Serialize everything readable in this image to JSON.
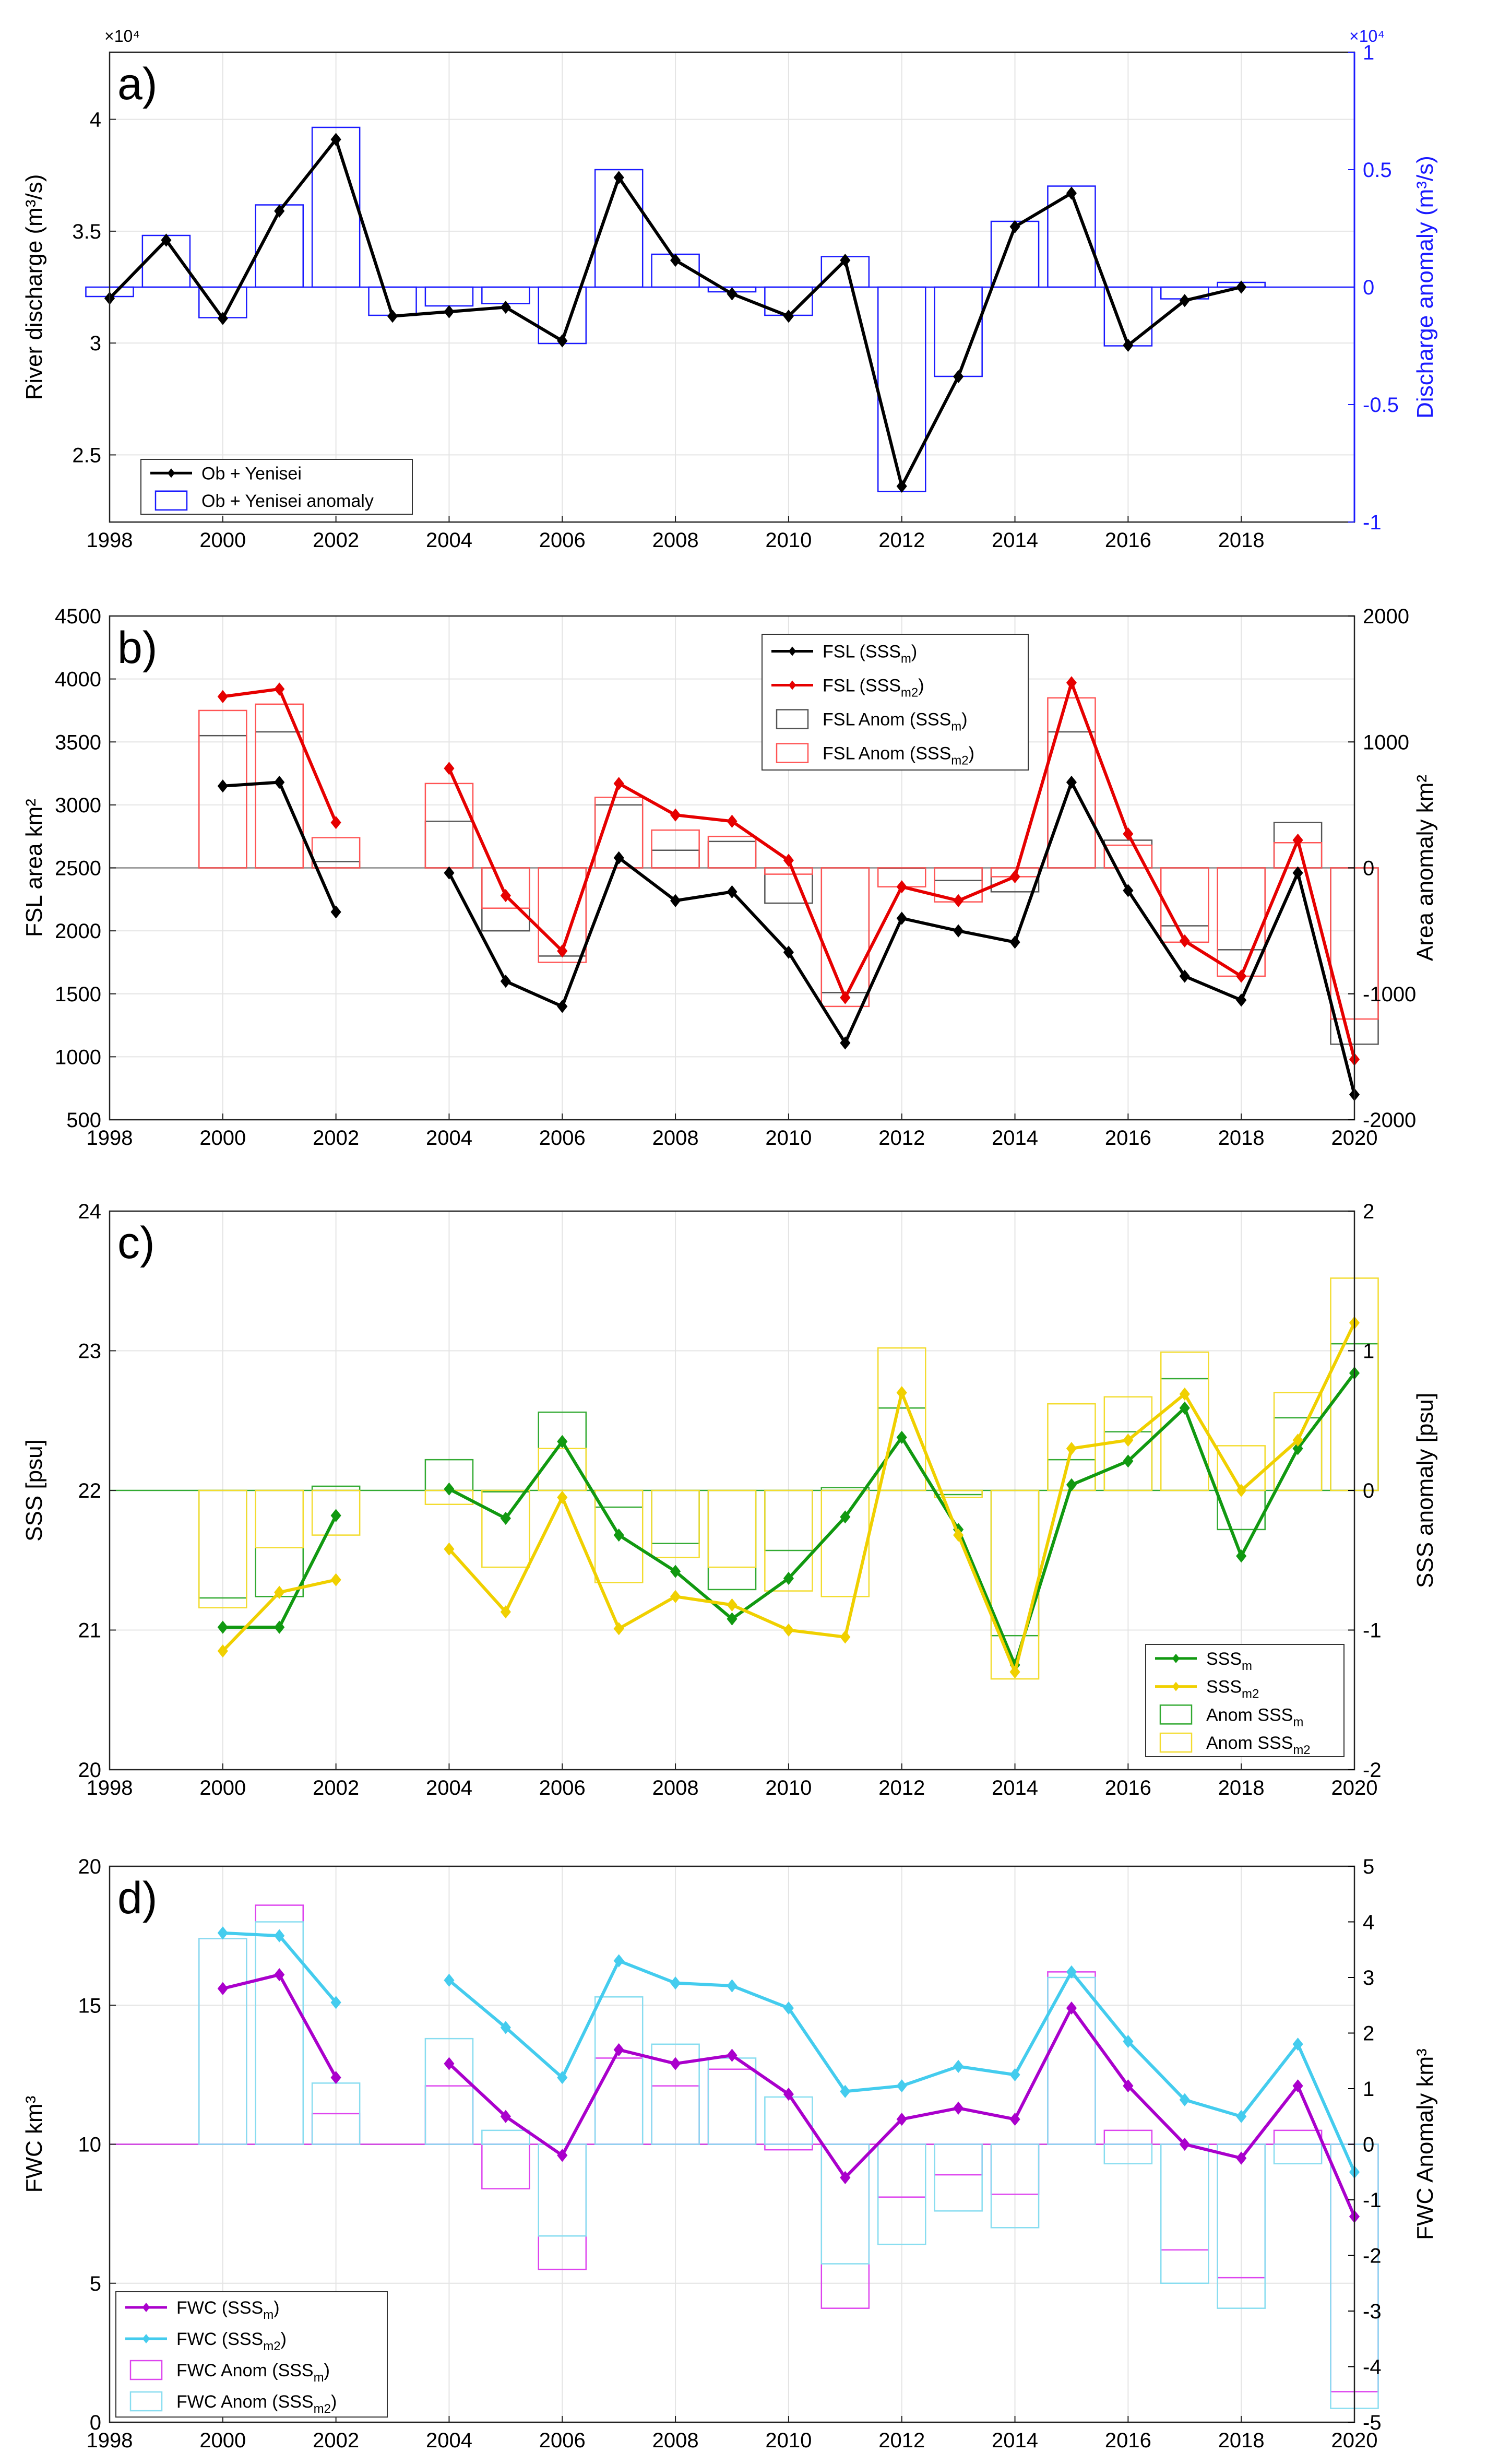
{
  "chart_data": [
    {
      "type": "bar+line",
      "panel_label": "a)",
      "ylabel": "River discharge (m³/s)",
      "ylabel_right": "Discharge anomaly (m³/s)",
      "ylabel_right_color": "#1a1aff",
      "y_multiplier_left": "×10⁴",
      "y_multiplier_right": "×10⁴",
      "xlim": [
        1998,
        2020
      ],
      "xticks": [
        "1998",
        "2000",
        "2002",
        "2004",
        "2006",
        "2008",
        "2010",
        "2012",
        "2014",
        "2016",
        "2018"
      ],
      "ylim": [
        2.2,
        4.3
      ],
      "yticks": [
        "2.5",
        "3",
        "3.5",
        "4"
      ],
      "ylim_right": [
        -1,
        1
      ],
      "yticks_right": [
        "-1",
        "-0.5",
        "0",
        "0.5",
        "1"
      ],
      "legend": {
        "position": "bottom-left",
        "entries": [
          "Ob + Yenisei",
          "Ob + Yenisei anomaly"
        ]
      },
      "series": [
        {
          "name": "Ob + Yenisei",
          "kind": "line",
          "axis": "left",
          "color": "#000000",
          "x": [
            1998,
            1999,
            2000,
            2001,
            2002,
            2003,
            2004,
            2005,
            2006,
            2007,
            2008,
            2009,
            2010,
            2011,
            2012,
            2013,
            2014,
            2015,
            2016,
            2017,
            2018
          ],
          "values": [
            3.2,
            3.46,
            3.11,
            3.59,
            3.91,
            3.12,
            3.14,
            3.16,
            3.01,
            3.74,
            3.37,
            3.22,
            3.12,
            3.37,
            2.36,
            2.85,
            3.52,
            3.67,
            2.99,
            3.19,
            3.25
          ]
        },
        {
          "name": "Ob + Yenisei anomaly",
          "kind": "bar",
          "axis": "right",
          "color": "#1a1aff",
          "x": [
            1998,
            1999,
            2000,
            2001,
            2002,
            2003,
            2004,
            2005,
            2006,
            2007,
            2008,
            2009,
            2010,
            2011,
            2012,
            2013,
            2014,
            2015,
            2016,
            2017,
            2018
          ],
          "values": [
            -0.04,
            0.22,
            -0.13,
            0.35,
            0.68,
            -0.12,
            -0.08,
            -0.07,
            -0.24,
            0.5,
            0.14,
            -0.02,
            -0.12,
            0.13,
            -0.87,
            -0.38,
            0.28,
            0.43,
            -0.25,
            -0.05,
            0.02
          ]
        }
      ]
    },
    {
      "type": "bar+line",
      "panel_label": "b)",
      "ylabel": "FSL area km²",
      "ylabel_right": "Area anomaly km²",
      "xlim": [
        1998,
        2020
      ],
      "xticks": [
        "1998",
        "2000",
        "2002",
        "2004",
        "2006",
        "2008",
        "2010",
        "2012",
        "2014",
        "2016",
        "2018",
        "2020"
      ],
      "ylim": [
        500,
        4500
      ],
      "yticks": [
        "500",
        "1000",
        "1500",
        "2000",
        "2500",
        "3000",
        "3500",
        "4000",
        "4500"
      ],
      "ylim_right": [
        -2000,
        2000
      ],
      "yticks_right": [
        "-2000",
        "-1000",
        "0",
        "1000",
        "2000"
      ],
      "legend": {
        "position": "top-center"
      },
      "series": [
        {
          "name": "FSL (SSS_m)",
          "kind": "line",
          "axis": "left",
          "color": "#000000",
          "x": [
            2000,
            2001,
            2002,
            null,
            2004,
            2005,
            2006,
            2007,
            2008,
            2009,
            2010,
            2011,
            2012,
            2013,
            2014,
            2015,
            2016,
            2017,
            2018,
            2019,
            2020
          ],
          "values": [
            3150,
            3180,
            2150,
            null,
            2460,
            1600,
            1400,
            2580,
            2240,
            2310,
            1830,
            1110,
            2100,
            2000,
            1910,
            3180,
            2320,
            1640,
            1450,
            2460,
            700
          ]
        },
        {
          "name": "FSL (SSS_m2)",
          "kind": "line",
          "axis": "left",
          "color": "#e60000",
          "x": [
            2000,
            2001,
            2002,
            null,
            2004,
            2005,
            2006,
            2007,
            2008,
            2009,
            2010,
            2011,
            2012,
            2013,
            2014,
            2015,
            2016,
            2017,
            2018,
            2019,
            2020
          ],
          "values": [
            3860,
            3920,
            2860,
            null,
            3290,
            2280,
            1840,
            3170,
            2920,
            2870,
            2560,
            1470,
            2350,
            2240,
            2430,
            3970,
            2770,
            1920,
            1640,
            2720,
            980
          ]
        },
        {
          "name": "FSL Anom (SSS_m)",
          "kind": "bar",
          "axis": "right",
          "color": "#555555",
          "x": [
            2000,
            2001,
            2002,
            2004,
            2005,
            2006,
            2007,
            2008,
            2009,
            2010,
            2011,
            2012,
            2013,
            2014,
            2015,
            2016,
            2017,
            2018,
            2019,
            2020
          ],
          "values": [
            1050,
            1080,
            50,
            370,
            -500,
            -700,
            500,
            140,
            210,
            -280,
            -990,
            0,
            -100,
            -190,
            1080,
            220,
            -460,
            -650,
            360,
            -1400
          ]
        },
        {
          "name": "FSL Anom (SSS_m2)",
          "kind": "bar",
          "axis": "right",
          "color": "#ff5555",
          "x": [
            2000,
            2001,
            2002,
            2004,
            2005,
            2006,
            2007,
            2008,
            2009,
            2010,
            2011,
            2012,
            2013,
            2014,
            2015,
            2016,
            2017,
            2018,
            2019,
            2020
          ],
          "values": [
            1250,
            1300,
            240,
            670,
            -320,
            -750,
            560,
            300,
            250,
            -50,
            -1100,
            -150,
            -270,
            -70,
            1350,
            180,
            -590,
            -860,
            200,
            -1200
          ]
        }
      ]
    },
    {
      "type": "bar+line",
      "panel_label": "c)",
      "ylabel": "SSS [psu]",
      "ylabel_right": "SSS anomaly [psu]",
      "xlim": [
        1998,
        2020
      ],
      "xticks": [
        "1998",
        "2000",
        "2002",
        "2004",
        "2006",
        "2008",
        "2010",
        "2012",
        "2014",
        "2016",
        "2018",
        "2020"
      ],
      "ylim": [
        20,
        24
      ],
      "yticks": [
        "20",
        "21",
        "22",
        "23",
        "24"
      ],
      "ylim_right": [
        -2,
        2
      ],
      "yticks_right": [
        "-2",
        "-1",
        "0",
        "1",
        "2"
      ],
      "legend": {
        "position": "bottom-right"
      },
      "series": [
        {
          "name": "SSS_m",
          "kind": "line",
          "axis": "left",
          "color": "#119911",
          "x": [
            2000,
            2001,
            2002,
            null,
            2004,
            2005,
            2006,
            2007,
            2008,
            2009,
            2010,
            2011,
            2012,
            2013,
            2014,
            2015,
            2016,
            2017,
            2018,
            2019,
            2020
          ],
          "values": [
            21.02,
            21.02,
            21.82,
            null,
            22.01,
            21.8,
            22.35,
            21.68,
            21.42,
            21.08,
            21.37,
            21.81,
            22.38,
            21.72,
            20.75,
            22.04,
            22.21,
            22.59,
            21.53,
            22.3,
            22.84
          ]
        },
        {
          "name": "SSS_m2",
          "kind": "line",
          "axis": "left",
          "color": "#f0d000",
          "x": [
            2000,
            2001,
            2002,
            null,
            2004,
            2005,
            2006,
            2007,
            2008,
            2009,
            2010,
            2011,
            2012,
            2013,
            2014,
            2015,
            2016,
            2017,
            2018,
            2019,
            2020
          ],
          "values": [
            20.85,
            21.27,
            21.36,
            null,
            21.58,
            21.13,
            21.95,
            21.01,
            21.24,
            21.18,
            21.0,
            20.95,
            22.7,
            21.68,
            20.7,
            22.3,
            22.36,
            22.69,
            22.0,
            22.36,
            23.2
          ]
        },
        {
          "name": "Anom SSS_m",
          "kind": "bar",
          "axis": "right",
          "color": "#33aa33",
          "x": [
            2000,
            2001,
            2002,
            2004,
            2005,
            2006,
            2007,
            2008,
            2009,
            2010,
            2011,
            2012,
            2013,
            2014,
            2015,
            2016,
            2017,
            2018,
            2019,
            2020
          ],
          "values": [
            -0.77,
            -0.76,
            0.03,
            0.22,
            -0.01,
            0.56,
            -0.12,
            -0.38,
            -0.71,
            -0.43,
            0.02,
            0.59,
            -0.03,
            -1.04,
            0.22,
            0.42,
            0.8,
            -0.28,
            0.52,
            1.05
          ]
        },
        {
          "name": "Anom SSS_m2",
          "kind": "bar",
          "axis": "right",
          "color": "#f3dc30",
          "x": [
            2000,
            2001,
            2002,
            2004,
            2005,
            2006,
            2007,
            2008,
            2009,
            2010,
            2011,
            2012,
            2013,
            2014,
            2015,
            2016,
            2017,
            2018,
            2019,
            2020
          ],
          "values": [
            -0.84,
            -0.41,
            -0.32,
            -0.1,
            -0.55,
            0.3,
            -0.66,
            -0.48,
            -0.55,
            -0.72,
            -0.76,
            1.02,
            -0.05,
            -1.35,
            0.62,
            0.67,
            0.99,
            0.32,
            0.7,
            1.52
          ]
        }
      ]
    },
    {
      "type": "bar+line",
      "panel_label": "d)",
      "ylabel": "FWC km³",
      "ylabel_right": "FWC Anomaly km³",
      "xlim": [
        1998,
        2020
      ],
      "xticks": [
        "1998",
        "2000",
        "2002",
        "2004",
        "2006",
        "2008",
        "2010",
        "2012",
        "2014",
        "2016",
        "2018",
        "2020"
      ],
      "ylim": [
        0,
        20
      ],
      "yticks": [
        "0",
        "5",
        "10",
        "15",
        "20"
      ],
      "ylim_right": [
        -5,
        5
      ],
      "yticks_right": [
        "-5",
        "-4",
        "-3",
        "-2",
        "-1",
        "0",
        "1",
        "2",
        "3",
        "4",
        "5"
      ],
      "legend": {
        "position": "bottom-left"
      },
      "series": [
        {
          "name": "FWC (SSS_m)",
          "kind": "line",
          "axis": "left",
          "color": "#aa00cc",
          "x": [
            2000,
            2001,
            2002,
            null,
            2004,
            2005,
            2006,
            2007,
            2008,
            2009,
            2010,
            2011,
            2012,
            2013,
            2014,
            2015,
            2016,
            2017,
            2018,
            2019,
            2020
          ],
          "values": [
            15.6,
            16.1,
            12.4,
            null,
            12.9,
            11.0,
            9.6,
            13.4,
            12.9,
            13.2,
            11.8,
            8.8,
            10.9,
            11.3,
            10.9,
            14.9,
            12.1,
            10.0,
            9.5,
            12.1,
            7.4
          ]
        },
        {
          "name": "FWC (SSS_m2)",
          "kind": "line",
          "axis": "left",
          "color": "#44ccee",
          "x": [
            2000,
            2001,
            2002,
            null,
            2004,
            2005,
            2006,
            2007,
            2008,
            2009,
            2010,
            2011,
            2012,
            2013,
            2014,
            2015,
            2016,
            2017,
            2018,
            2019,
            2020
          ],
          "values": [
            17.6,
            17.5,
            15.1,
            null,
            15.9,
            14.2,
            12.4,
            16.6,
            15.8,
            15.7,
            14.9,
            11.9,
            12.1,
            12.8,
            12.5,
            16.2,
            13.7,
            11.6,
            11.0,
            13.6,
            9.0
          ]
        },
        {
          "name": "FWC Anom (SSS_m)",
          "kind": "bar",
          "axis": "right",
          "color": "#dd44ee",
          "x": [
            2000,
            2001,
            2002,
            2004,
            2005,
            2006,
            2007,
            2008,
            2009,
            2010,
            2011,
            2012,
            2013,
            2014,
            2015,
            2016,
            2017,
            2018,
            2019,
            2020
          ],
          "values": [
            3.7,
            4.3,
            0.55,
            1.05,
            -0.8,
            -2.25,
            1.55,
            1.05,
            1.35,
            -0.1,
            -2.95,
            -0.95,
            -0.55,
            -0.9,
            3.1,
            0.25,
            -1.9,
            -2.4,
            0.25,
            -4.45
          ]
        },
        {
          "name": "FWC Anom (SSS_m2)",
          "kind": "bar",
          "axis": "right",
          "color": "#88ddf0",
          "x": [
            2000,
            2001,
            2002,
            2004,
            2005,
            2006,
            2007,
            2008,
            2009,
            2010,
            2011,
            2012,
            2013,
            2014,
            2015,
            2016,
            2017,
            2018,
            2019,
            2020
          ],
          "values": [
            3.7,
            4.0,
            1.1,
            1.9,
            0.25,
            -1.65,
            2.65,
            1.8,
            1.55,
            0.85,
            -2.15,
            -1.8,
            -1.2,
            -1.5,
            3.0,
            -0.35,
            -2.5,
            -2.95,
            -0.35,
            -4.75
          ]
        }
      ]
    }
  ],
  "legends": {
    "a": [
      {
        "text": "Ob + Yenisei",
        "sub": ""
      },
      {
        "text": "Ob + Yenisei anomaly",
        "sub": ""
      }
    ],
    "b": [
      {
        "text": "FSL (SSS",
        "sub": "m",
        "tail": ")"
      },
      {
        "text": "FSL (SSS",
        "sub": "m2",
        "tail": ")"
      },
      {
        "text": "FSL Anom (SSS",
        "sub": "m",
        "tail": ")"
      },
      {
        "text": "FSL Anom (SSS",
        "sub": "m2",
        "tail": ")"
      }
    ],
    "c": [
      {
        "text": "SSS",
        "sub": "m",
        "tail": ""
      },
      {
        "text": "SSS",
        "sub": "m2",
        "tail": ""
      },
      {
        "text": "Anom SSS",
        "sub": "m",
        "tail": ""
      },
      {
        "text": "Anom SSS",
        "sub": "m2",
        "tail": ""
      }
    ],
    "d": [
      {
        "text": "FWC (SSS",
        "sub": "m",
        "tail": ")"
      },
      {
        "text": "FWC (SSS",
        "sub": "m2",
        "tail": ")"
      },
      {
        "text": "FWC Anom (SSS",
        "sub": "m",
        "tail": ")"
      },
      {
        "text": "FWC Anom (SSS",
        "sub": "m2",
        "tail": ")"
      }
    ]
  }
}
